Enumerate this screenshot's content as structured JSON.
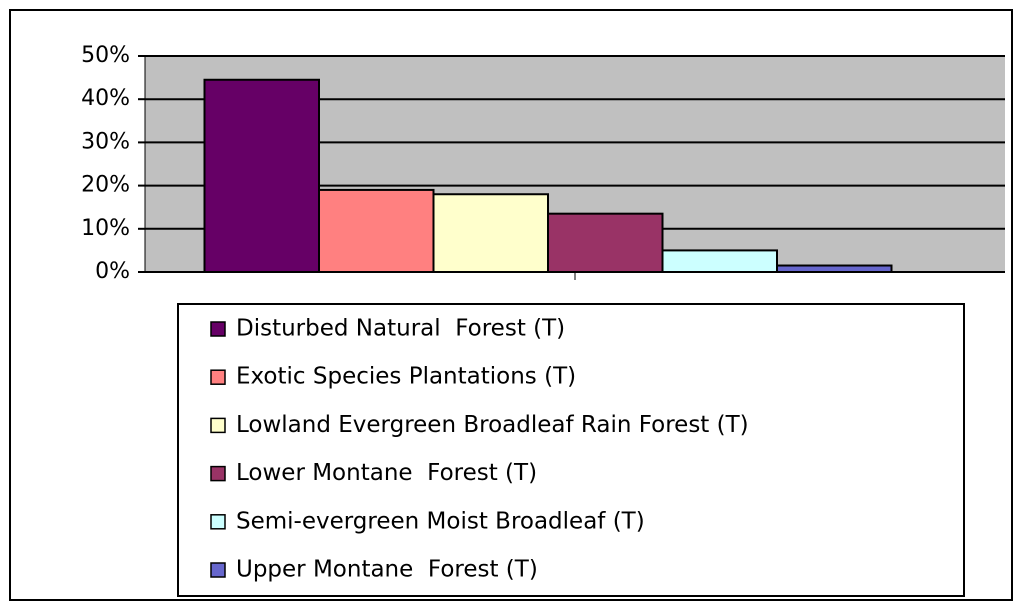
{
  "chart_data": {
    "type": "bar",
    "categories": [
      null
    ],
    "series": [
      {
        "name": "Disturbed Natural  Forest (T)",
        "color": "#660066",
        "values": [
          44.5
        ]
      },
      {
        "name": "Exotic Species Plantations (T)",
        "color": "#ff8080",
        "values": [
          19
        ]
      },
      {
        "name": "Lowland Evergreen Broadleaf Rain Forest (T)",
        "color": "#ffffcc",
        "values": [
          18
        ]
      },
      {
        "name": "Lower Montane  Forest (T)",
        "color": "#993366",
        "values": [
          13.5
        ]
      },
      {
        "name": "Semi-evergreen Moist Broadleaf (T)",
        "color": "#ccffff",
        "values": [
          5
        ]
      },
      {
        "name": "Upper Montane  Forest (T)",
        "color": "#6666cc",
        "values": [
          1.5
        ]
      }
    ],
    "ylim": [
      0,
      50
    ],
    "yticks": [
      {
        "value": 0,
        "label": "0%"
      },
      {
        "value": 10,
        "label": "10%"
      },
      {
        "value": 20,
        "label": "20%"
      },
      {
        "value": 30,
        "label": "30%"
      },
      {
        "value": 40,
        "label": "40%"
      },
      {
        "value": 50,
        "label": "50%"
      }
    ],
    "grid": true,
    "legend": "bottom"
  }
}
